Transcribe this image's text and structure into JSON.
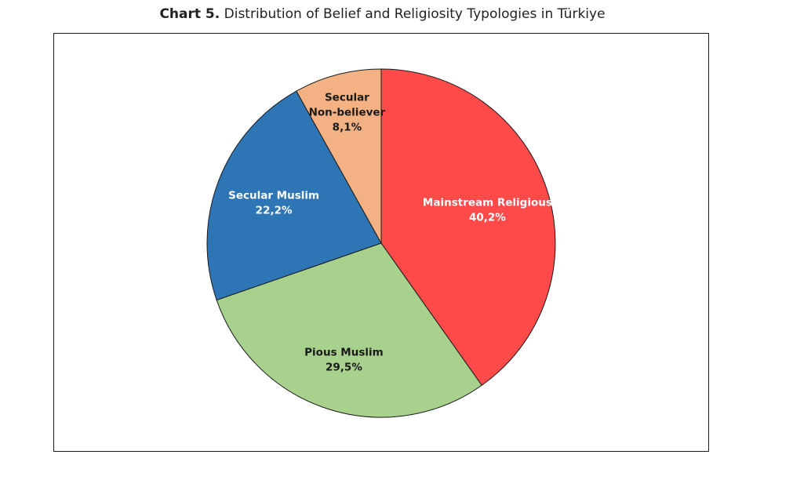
{
  "title": {
    "prefix": "Chart 5.",
    "text": "Distribution of Belief and Religiosity Typologies in Türkiye"
  },
  "chart_data": {
    "type": "pie",
    "title": "Chart 5. Distribution of Belief and Religiosity Typologies in Türkiye",
    "start_angle_deg": 0,
    "direction": "clockwise",
    "legend": "none",
    "slices": [
      {
        "label_lines": [
          "Mainstream Religious"
        ],
        "value": 40.2,
        "value_label": "40,2%",
        "color": "#ff4a4a",
        "text_color": "#ffffff"
      },
      {
        "label_lines": [
          "Pious Muslim"
        ],
        "value": 29.5,
        "value_label": "29,5%",
        "color": "#a9d18e",
        "text_color": "#1a1a1a"
      },
      {
        "label_lines": [
          "Secular Muslim"
        ],
        "value": 22.2,
        "value_label": "22,2%",
        "color": "#2e75b6",
        "text_color": "#ffffff"
      },
      {
        "label_lines": [
          "Secular",
          "Non-believer"
        ],
        "value": 8.1,
        "value_label": "8,1%",
        "color": "#f4b183",
        "text_color": "#1a1a1a"
      }
    ]
  }
}
